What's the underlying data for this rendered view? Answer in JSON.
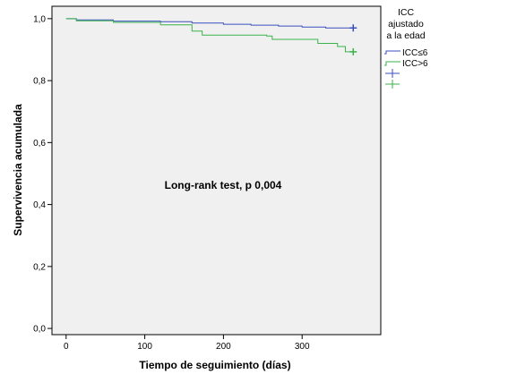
{
  "chart_data": {
    "type": "line",
    "step": true,
    "xlabel": "Tiempo de seguimiento (días)",
    "ylabel": "Supervivencia acumulada",
    "xlim": [
      -18,
      400
    ],
    "ylim": [
      -0.02,
      1.04
    ],
    "x_ticks": [
      0,
      100,
      200,
      300
    ],
    "y_ticks": [
      0.0,
      0.2,
      0.4,
      0.6,
      0.8,
      1.0
    ],
    "y_tick_labels": [
      "0,0",
      "0,2",
      "0,4",
      "0,6",
      "0,8",
      "1,0"
    ],
    "grid": false,
    "annotation": "Long-rank test, p 0,004",
    "legend": {
      "title_lines": [
        "ICC",
        "ajustado",
        "a la edad"
      ],
      "entries": [
        "ICC≤6",
        "ICC>6"
      ],
      "placement": "right"
    },
    "series": [
      {
        "name": "ICC≤6",
        "color": "#3a4fbf",
        "x": [
          0,
          13,
          60,
          120,
          160,
          200,
          235,
          270,
          300,
          330,
          365
        ],
        "y": [
          1.0,
          0.996,
          0.992,
          0.99,
          0.986,
          0.982,
          0.979,
          0.976,
          0.973,
          0.97,
          0.97
        ],
        "censored": [
          {
            "x": 365,
            "y": 0.97
          }
        ]
      },
      {
        "name": "ICC>6",
        "color": "#3bb34a",
        "x": [
          0,
          13,
          60,
          120,
          160,
          173,
          255,
          262,
          320,
          345,
          355,
          365
        ],
        "y": [
          1.0,
          0.993,
          0.988,
          0.98,
          0.96,
          0.947,
          0.944,
          0.933,
          0.92,
          0.91,
          0.893,
          0.893
        ],
        "censored": [
          {
            "x": 365,
            "y": 0.893
          }
        ]
      }
    ]
  }
}
